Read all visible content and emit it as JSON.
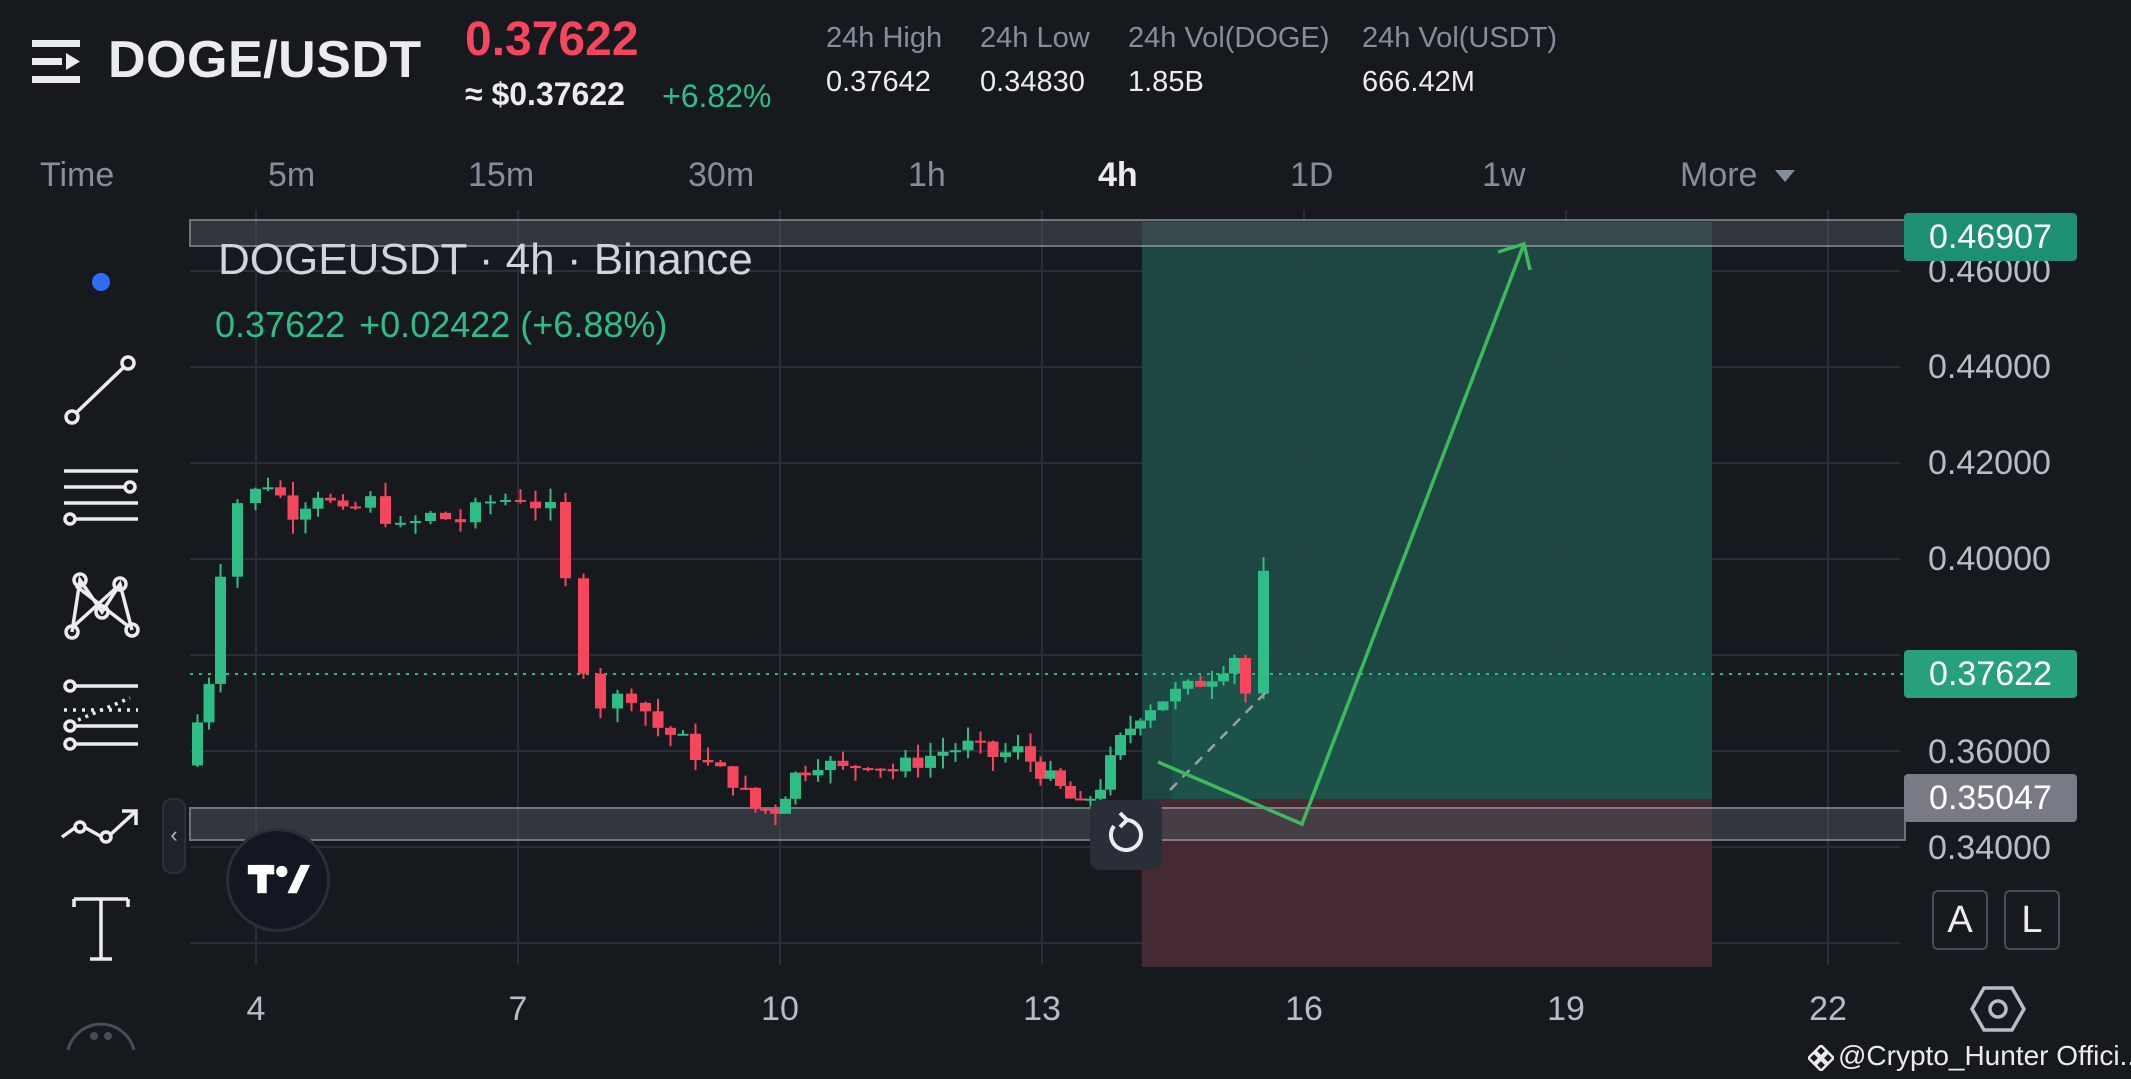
{
  "header": {
    "pair": "DOGE/USDT",
    "last_price": "0.37622",
    "approx_price": "≈ $0.37622",
    "change_pct": "+6.82%",
    "stats": [
      {
        "label": "24h High",
        "value": "0.37642"
      },
      {
        "label": "24h Low",
        "value": "0.34830"
      },
      {
        "label": "24h Vol(DOGE)",
        "value": "1.85B"
      },
      {
        "label": "24h Vol(USDT)",
        "value": "666.42M"
      }
    ]
  },
  "timeframes": [
    "Time",
    "5m",
    "15m",
    "30m",
    "1h",
    "4h",
    "1D",
    "1w",
    "More"
  ],
  "active_timeframe": "4h",
  "legend": {
    "title": "DOGEUSDT · 4h · Binance",
    "price": "0.37622",
    "change": "+0.02422 (+6.88%)"
  },
  "price_axis": [
    "0.46000",
    "0.44000",
    "0.42000",
    "0.40000",
    "0.36000",
    "0.34000"
  ],
  "price_tags": {
    "target": "0.46907",
    "current": "0.37622",
    "stop": "0.35047"
  },
  "date_axis": [
    "4",
    "7",
    "10",
    "13",
    "16",
    "19",
    "22"
  ],
  "scale_buttons": [
    "A",
    "L"
  ],
  "collapse_glyph": "‹",
  "watermark": "@Crypto_Hunter Offici...",
  "colors": {
    "up": "#2ebd85",
    "down": "#f6465d",
    "background": "#161a1e",
    "target_zone": "#1f4a45",
    "stop_zone": "#4a2a35"
  },
  "icons": [
    "menu-icon",
    "dot-icon",
    "trend-line-icon",
    "horizontal-lines-icon",
    "pattern-icon",
    "fib-icon",
    "path-icon",
    "text-icon",
    "more-tools-icon",
    "tradingview-logo",
    "reset-icon",
    "settings-icon"
  ]
}
